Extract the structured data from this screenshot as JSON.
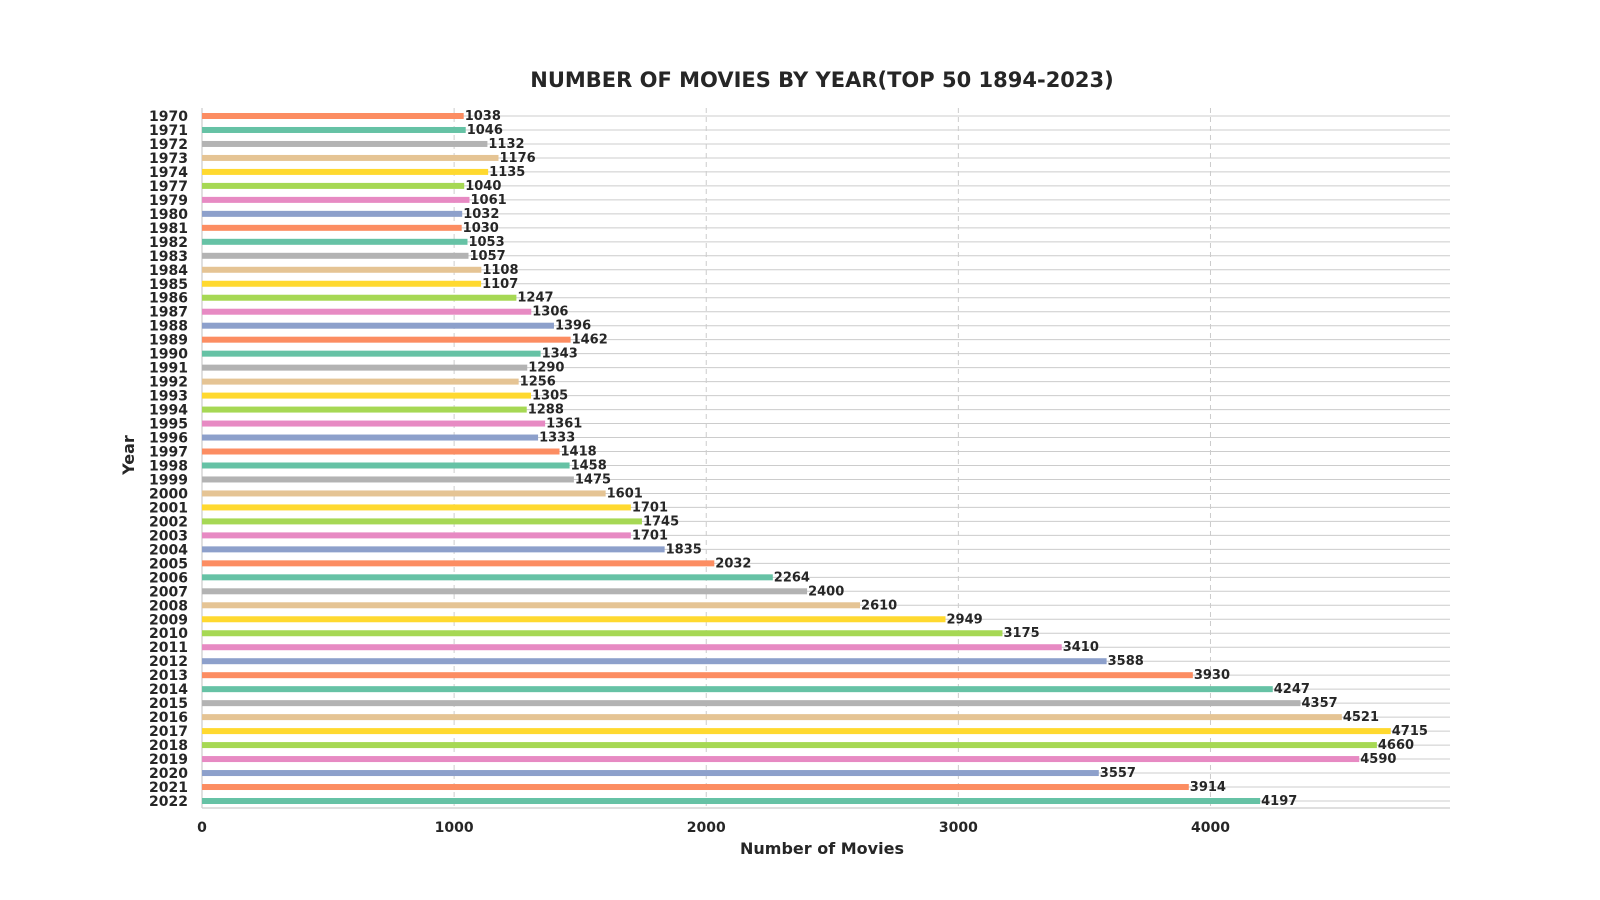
{
  "chart_data": {
    "type": "bar",
    "orientation": "horizontal",
    "title": "NUMBER OF MOVIES BY YEAR(TOP 50 1894-2023)",
    "xlabel": "Number of Movies",
    "ylabel": "Year",
    "xlim": [
      0,
      4950
    ],
    "xticks": [
      0,
      1000,
      2000,
      3000,
      4000
    ],
    "grid": true,
    "legend": "none",
    "categories": [
      "1970",
      "1971",
      "1972",
      "1973",
      "1974",
      "1977",
      "1979",
      "1980",
      "1981",
      "1982",
      "1983",
      "1984",
      "1985",
      "1986",
      "1987",
      "1988",
      "1989",
      "1990",
      "1991",
      "1992",
      "1993",
      "1994",
      "1995",
      "1996",
      "1997",
      "1998",
      "1999",
      "2000",
      "2001",
      "2002",
      "2003",
      "2004",
      "2005",
      "2006",
      "2007",
      "2008",
      "2009",
      "2010",
      "2011",
      "2012",
      "2013",
      "2014",
      "2015",
      "2016",
      "2017",
      "2018",
      "2019",
      "2020",
      "2021",
      "2022"
    ],
    "values": [
      1038,
      1046,
      1132,
      1176,
      1135,
      1040,
      1061,
      1032,
      1030,
      1053,
      1057,
      1108,
      1107,
      1247,
      1306,
      1396,
      1462,
      1343,
      1290,
      1256,
      1305,
      1288,
      1361,
      1333,
      1418,
      1458,
      1475,
      1601,
      1701,
      1745,
      1701,
      1835,
      2032,
      2264,
      2400,
      2610,
      2949,
      3175,
      3410,
      3588,
      3930,
      4247,
      4357,
      4521,
      4715,
      4660,
      4590,
      3557,
      3914,
      4197
    ],
    "palette": [
      "#fc8d62",
      "#66c2a5",
      "#b3b3b3",
      "#e5c494",
      "#ffd92f",
      "#a6d854",
      "#e78ac3",
      "#8da0cb"
    ]
  }
}
